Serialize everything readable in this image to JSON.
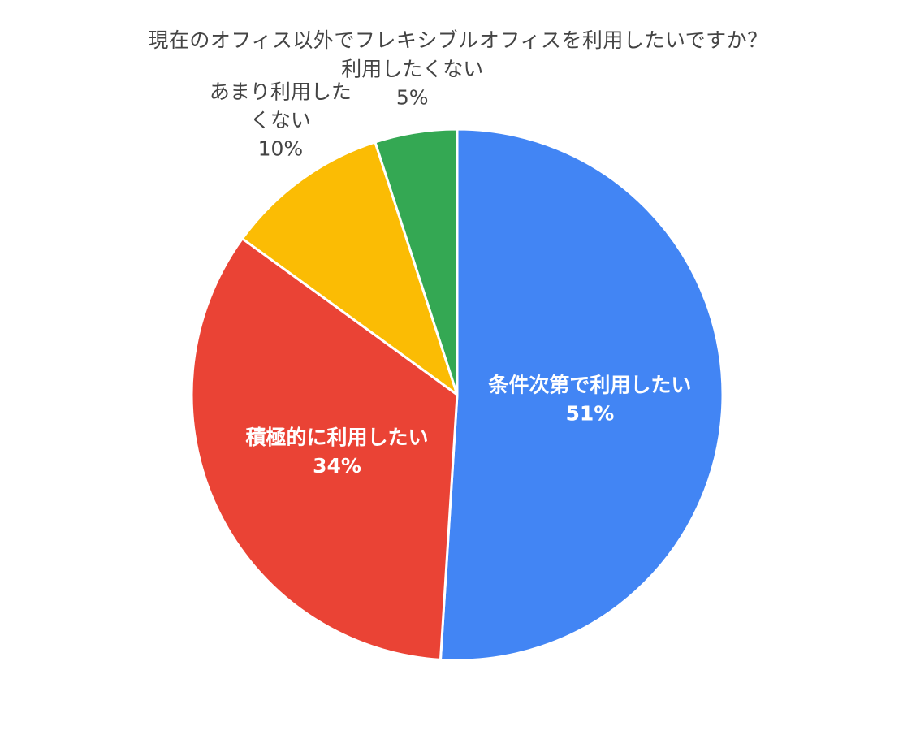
{
  "chart_data": {
    "type": "pie",
    "title": "現在のオフィス以外でフレキシブルオフィスを利用したいですか？",
    "start_angle_deg": 0,
    "direction": "clockwise",
    "slices": [
      {
        "label_lines": [
          "条件次第で利用したい"
        ],
        "value": 51,
        "pct_label": "51%",
        "color": "#4285f4",
        "label_color": "#ffffff",
        "label_placement": "inside"
      },
      {
        "label_lines": [
          "積極的に利用したい"
        ],
        "value": 34,
        "pct_label": "34%",
        "color": "#ea4335",
        "label_color": "#ffffff",
        "label_placement": "inside"
      },
      {
        "label_lines": [
          "あまり利用した",
          "くない"
        ],
        "value": 10,
        "pct_label": "10%",
        "color": "#fbbc04",
        "label_color": "#444444",
        "label_placement": "outside"
      },
      {
        "label_lines": [
          "利用したくない"
        ],
        "value": 5,
        "pct_label": "5%",
        "color": "#34a853",
        "label_color": "#444444",
        "label_placement": "outside"
      }
    ],
    "legend": "none"
  }
}
